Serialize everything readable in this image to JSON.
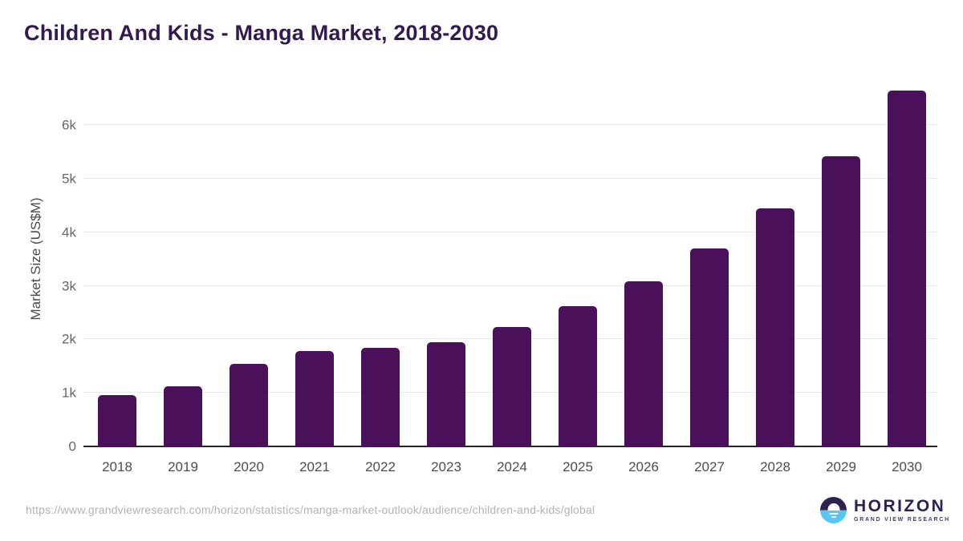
{
  "header": {
    "title": "Children And Kids - Manga Market, 2018-2030"
  },
  "chart_data": {
    "type": "bar",
    "title": "Children And Kids - Manga Market, 2018-2030",
    "categories": [
      "2018",
      "2019",
      "2020",
      "2021",
      "2022",
      "2023",
      "2024",
      "2025",
      "2026",
      "2027",
      "2028",
      "2029",
      "2030"
    ],
    "values": [
      960,
      1130,
      1540,
      1780,
      1840,
      1940,
      2230,
      2620,
      3090,
      3700,
      4450,
      5420,
      6650
    ],
    "xlabel": "",
    "ylabel": "Market Size (US$M)",
    "ylim": [
      0,
      7000
    ],
    "yticks": [
      {
        "value": 0,
        "label": "0"
      },
      {
        "value": 1000,
        "label": "1k"
      },
      {
        "value": 2000,
        "label": "2k"
      },
      {
        "value": 3000,
        "label": "3k"
      },
      {
        "value": 4000,
        "label": "4k"
      },
      {
        "value": 5000,
        "label": "5k"
      },
      {
        "value": 6000,
        "label": "6k"
      }
    ],
    "grid": "horizontal",
    "legend_position": "none",
    "bar_color": "#4a115a"
  },
  "footer": {
    "source_url": "https://www.grandviewresearch.com/horizon/statistics/manga-market-outlook/audience/children-and-kids/global",
    "logo": {
      "brand": "HORIZON",
      "tagline": "GRAND VIEW RESEARCH",
      "icon": "horizon-sun-icon"
    }
  },
  "colors": {
    "bar": "#4a115a",
    "title": "#321950",
    "axis_line": "#262626",
    "gridline": "#e9e9e9",
    "tick_label": "#666666",
    "x_label": "#4d4d4d",
    "url_text": "#b3b3b3",
    "logo_dark": "#2e2250",
    "logo_blue": "#57c6f2"
  }
}
